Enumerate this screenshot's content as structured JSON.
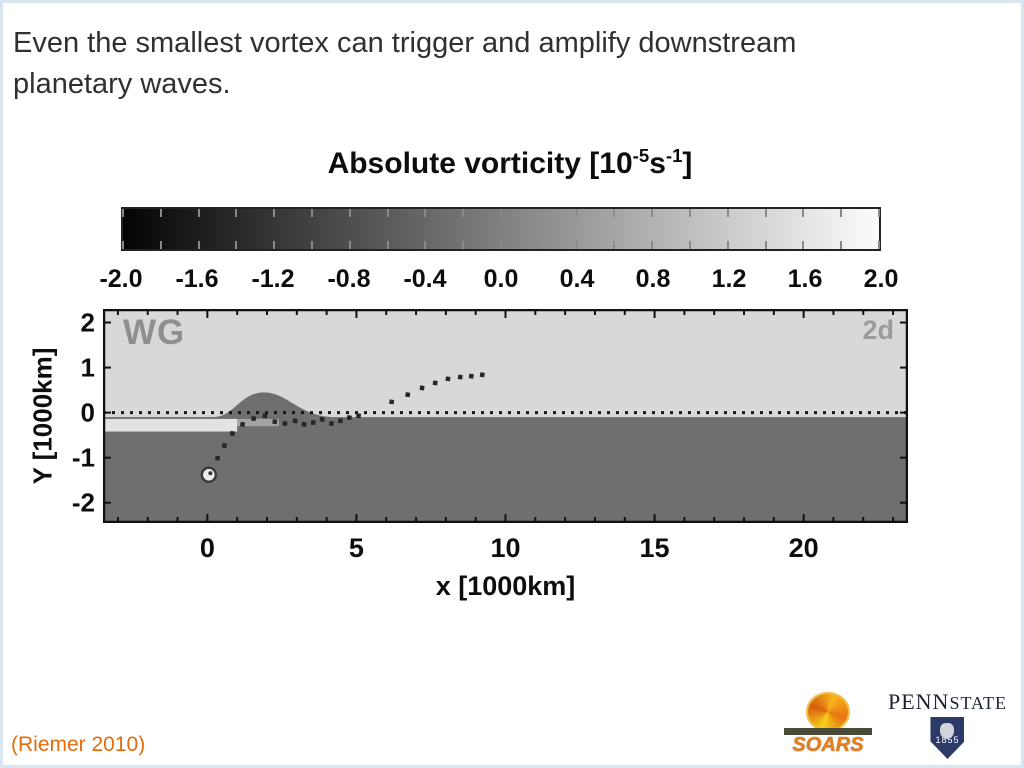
{
  "slide": {
    "title_lines": [
      "Even the smallest vortex can trigger and amplify downstream",
      "planetary waves."
    ],
    "citation": "(Riemer 2010)",
    "citation_color": "#e36c0a"
  },
  "chart": {
    "title_parts": {
      "prefix": "Absolute vorticity [10",
      "sup1": "-5",
      "mid": "s",
      "sup2": "-1",
      "suffix": "]"
    }
  },
  "chart_data": {
    "type": "heatmap",
    "title": "Absolute vorticity [10^-5 s^-1]",
    "xlabel": "x [1000km]",
    "ylabel": "Y [1000km]",
    "xlim": [
      -3.5,
      23.5
    ],
    "ylim": [
      -2.45,
      2.3
    ],
    "x_tick_labels": [
      "0",
      "5",
      "10",
      "15",
      "20"
    ],
    "x_tick_values": [
      0,
      5,
      10,
      15,
      20
    ],
    "y_tick_labels": [
      "2",
      "1",
      "0",
      "-1",
      "-2"
    ],
    "y_tick_values": [
      2,
      1,
      0,
      -1,
      -2
    ],
    "annotations": [
      {
        "text": "WG",
        "position": "top-left"
      },
      {
        "text": "2d",
        "position": "top-right"
      }
    ],
    "colorbar": {
      "min": -2.0,
      "max": 2.0,
      "tick_labels": [
        "-2.0",
        "-1.6",
        "-1.2",
        "-0.8",
        "-0.4",
        "0.0",
        "0.4",
        "0.8",
        "1.2",
        "1.6",
        "2.0"
      ],
      "tick_values": [
        -2.0,
        -1.6,
        -1.2,
        -0.8,
        -0.4,
        0.0,
        0.4,
        0.8,
        1.2,
        1.6,
        2.0
      ],
      "minor_tick_count": 21,
      "gradient": [
        "#040404",
        "#fcfcfc"
      ]
    },
    "colors": {
      "upper_region": "#d8d8d8",
      "lower_region": "#6f6f6f",
      "track_dots": "#262626",
      "zero_line": "#161616",
      "light_band": "#efefef"
    },
    "region_values_approx": {
      "upper_half": 1.2,
      "lower_half": -0.6
    },
    "zero_line": {
      "y": 0,
      "style": "dashed"
    },
    "interface": {
      "baseline_y": -0.1,
      "hump": {
        "x_start": 0.2,
        "x_peak": 1.9,
        "x_end": 4.3,
        "peak_y": 0.45
      }
    },
    "light_band": {
      "x_start": -3.5,
      "x_end": 1.0,
      "y_top": -0.14,
      "y_bottom": -0.42
    },
    "vortex": {
      "x": 0.05,
      "y": -1.38
    },
    "track": [
      [
        0.34,
        -1.01
      ],
      [
        0.57,
        -0.73
      ],
      [
        0.84,
        -0.46
      ],
      [
        1.18,
        -0.26
      ],
      [
        1.55,
        -0.13
      ],
      [
        1.93,
        -0.07
      ],
      [
        2.26,
        -0.2
      ],
      [
        2.6,
        -0.24
      ],
      [
        2.94,
        -0.18
      ],
      [
        3.24,
        -0.26
      ],
      [
        3.55,
        -0.22
      ],
      [
        3.85,
        -0.15
      ],
      [
        4.16,
        -0.24
      ],
      [
        4.46,
        -0.18
      ],
      [
        4.76,
        -0.11
      ],
      [
        5.07,
        -0.07
      ],
      [
        6.18,
        0.24
      ],
      [
        6.72,
        0.4
      ],
      [
        7.2,
        0.55
      ],
      [
        7.64,
        0.66
      ],
      [
        8.07,
        0.75
      ],
      [
        8.48,
        0.79
      ],
      [
        8.85,
        0.81
      ],
      [
        9.22,
        0.84
      ]
    ]
  },
  "footer_logos": {
    "soars_text": "SOARS",
    "penn_text": "PENN",
    "state_text": "STATE",
    "shield_year": "1855"
  }
}
